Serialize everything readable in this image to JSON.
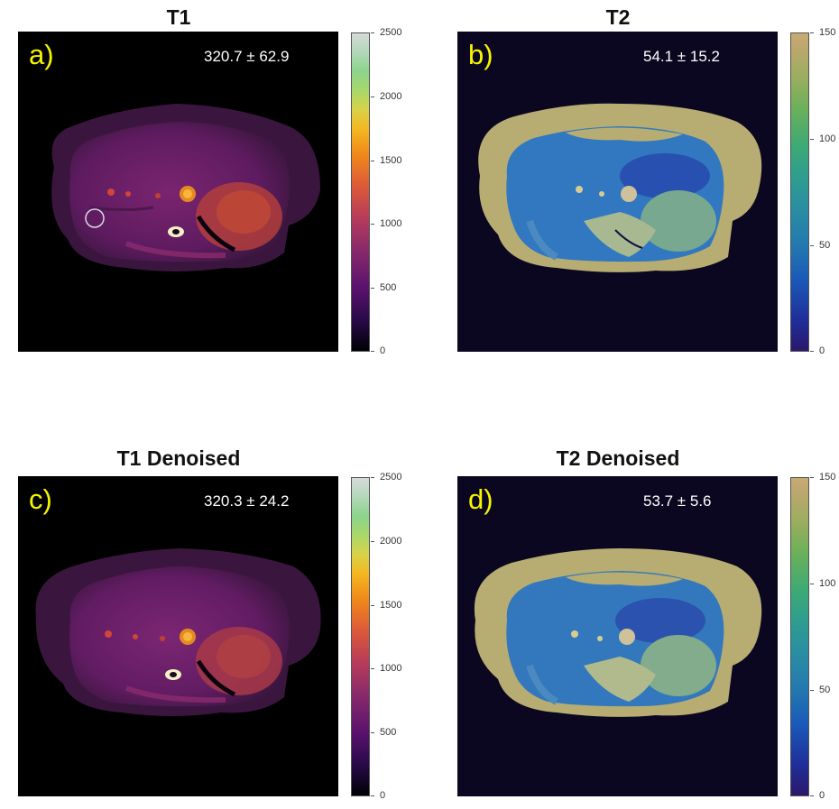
{
  "panels": [
    {
      "id": "a",
      "title": "T1",
      "letter": "a)",
      "stat": "320.7 ± 62.9",
      "colormap": "inferno-like",
      "ticks": [
        "2500",
        "2000",
        "1500",
        "1000",
        "500",
        "0"
      ]
    },
    {
      "id": "b",
      "title": "T2",
      "letter": "b)",
      "stat": "54.1 ± 15.2",
      "colormap": "haline-like",
      "ticks": [
        "150",
        "100",
        "50",
        "0"
      ]
    },
    {
      "id": "c",
      "title": "T1 Denoised",
      "letter": "c)",
      "stat": "320.3 ± 24.2",
      "colormap": "inferno-like",
      "ticks": [
        "2500",
        "2000",
        "1500",
        "1000",
        "500",
        "0"
      ]
    },
    {
      "id": "d",
      "title": "T2 Denoised",
      "letter": "d)",
      "stat": "53.7 ± 5.6",
      "colormap": "haline-like",
      "ticks": [
        "150",
        "100",
        "50",
        "0"
      ]
    }
  ],
  "colors": {
    "label_yellow": "#f5f500",
    "t1_background": "#000000",
    "t2_background": "#0b0720",
    "t1_body": "#6a1d63",
    "t1_rim": "#3f1a45",
    "t1_hot": "#c24a2a",
    "t2_body": "#b7ad72",
    "t2_organ": "#2f78c4",
    "roi_circle": "#d8d8e6"
  }
}
